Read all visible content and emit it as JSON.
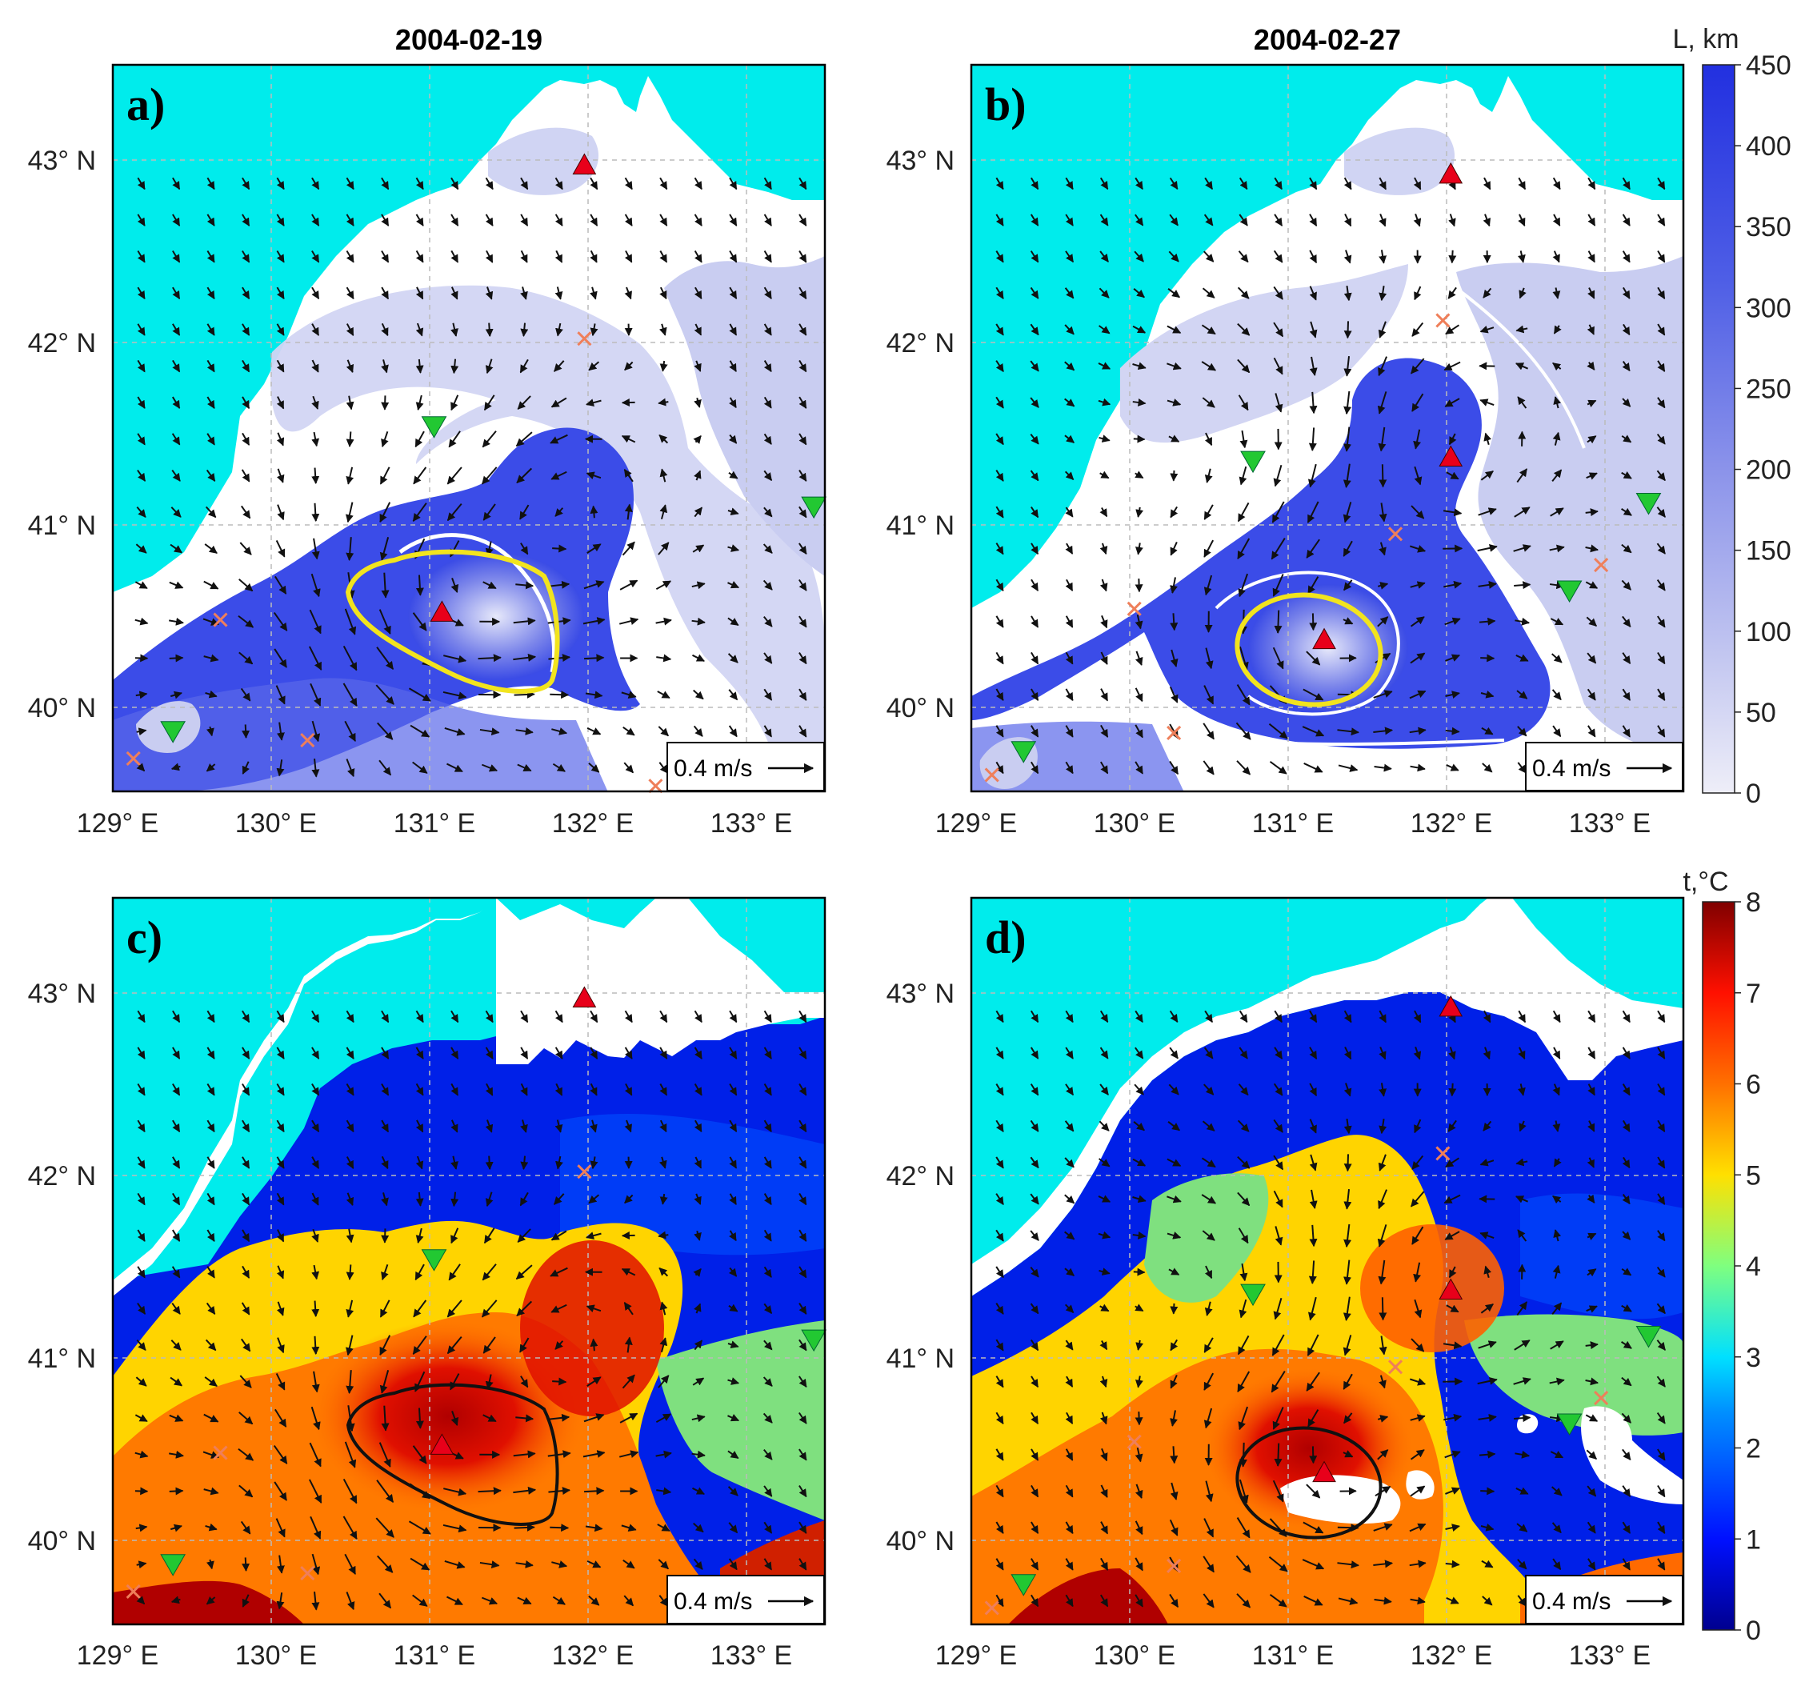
{
  "figure": {
    "titles": {
      "a": "2004-02-19",
      "b": "2004-02-27"
    },
    "panel_labels": [
      "a)",
      "b)",
      "c)",
      "d)"
    ],
    "lat_ticks": [
      "43° N",
      "42° N",
      "41° N",
      "40° N"
    ],
    "lon_ticks": [
      "129° E",
      "130° E",
      "131° E",
      "132° E",
      "133° E"
    ],
    "scale_label": "0.4 m/s",
    "colorbar_L": {
      "label": "L, km",
      "ticks": [
        "450",
        "400",
        "350",
        "300",
        "250",
        "200",
        "150",
        "100",
        "50",
        "0"
      ],
      "min": 0,
      "max": 450,
      "colors": [
        "#eaeaf6",
        "#2a3fe6"
      ]
    },
    "colorbar_t": {
      "label": "t,°C",
      "ticks": [
        "8",
        "7",
        "6",
        "5",
        "4",
        "3",
        "2",
        "1",
        "0"
      ],
      "min": 0,
      "max": 8,
      "colormap": "jet"
    },
    "colors": {
      "sea_fill": "#00ecec",
      "land_fill": "#ffffff",
      "max_triangle": "#e8001a",
      "min_triangle": "#22c832",
      "saddle_cross": "#ef7f5a",
      "contour_yellow": "#f2e41e",
      "contour_black": "#111111"
    },
    "markers": {
      "a": {
        "max": [
          [
            131.95,
            42.95
          ],
          [
            131.05,
            40.5
          ]
        ],
        "min": [
          [
            131.0,
            41.52
          ],
          [
            129.35,
            39.85
          ],
          [
            133.4,
            41.08
          ]
        ],
        "saddle": [
          [
            131.95,
            42.0
          ],
          [
            129.65,
            40.46
          ],
          [
            130.2,
            39.8
          ],
          [
            129.1,
            39.7
          ],
          [
            132.4,
            39.55
          ]
        ]
      },
      "b": {
        "max": [
          [
            132.0,
            42.9
          ],
          [
            132.0,
            41.35
          ],
          [
            131.2,
            40.35
          ]
        ],
        "min": [
          [
            130.75,
            41.33
          ],
          [
            132.75,
            40.62
          ],
          [
            133.25,
            41.1
          ],
          [
            129.3,
            39.74
          ]
        ],
        "saddle": [
          [
            131.95,
            42.1
          ],
          [
            131.65,
            40.93
          ],
          [
            132.95,
            40.76
          ],
          [
            130.0,
            40.52
          ],
          [
            130.25,
            39.84
          ],
          [
            129.1,
            39.61
          ]
        ]
      },
      "c": {
        "max": [
          [
            131.95,
            42.95
          ],
          [
            131.05,
            40.5
          ]
        ],
        "min": [
          [
            131.0,
            41.52
          ],
          [
            129.35,
            39.85
          ],
          [
            133.4,
            41.08
          ]
        ],
        "saddle": [
          [
            131.95,
            42.0
          ],
          [
            129.65,
            40.46
          ],
          [
            130.2,
            39.8
          ],
          [
            129.1,
            39.7
          ]
        ]
      },
      "d": {
        "max": [
          [
            132.0,
            42.9
          ],
          [
            132.0,
            41.35
          ],
          [
            131.2,
            40.35
          ]
        ],
        "min": [
          [
            130.75,
            41.33
          ],
          [
            132.75,
            40.62
          ],
          [
            133.25,
            41.1
          ],
          [
            129.3,
            39.74
          ]
        ],
        "saddle": [
          [
            131.95,
            42.1
          ],
          [
            131.65,
            40.93
          ],
          [
            132.95,
            40.76
          ],
          [
            130.0,
            40.52
          ],
          [
            130.25,
            39.84
          ],
          [
            129.1,
            39.61
          ]
        ]
      }
    }
  }
}
